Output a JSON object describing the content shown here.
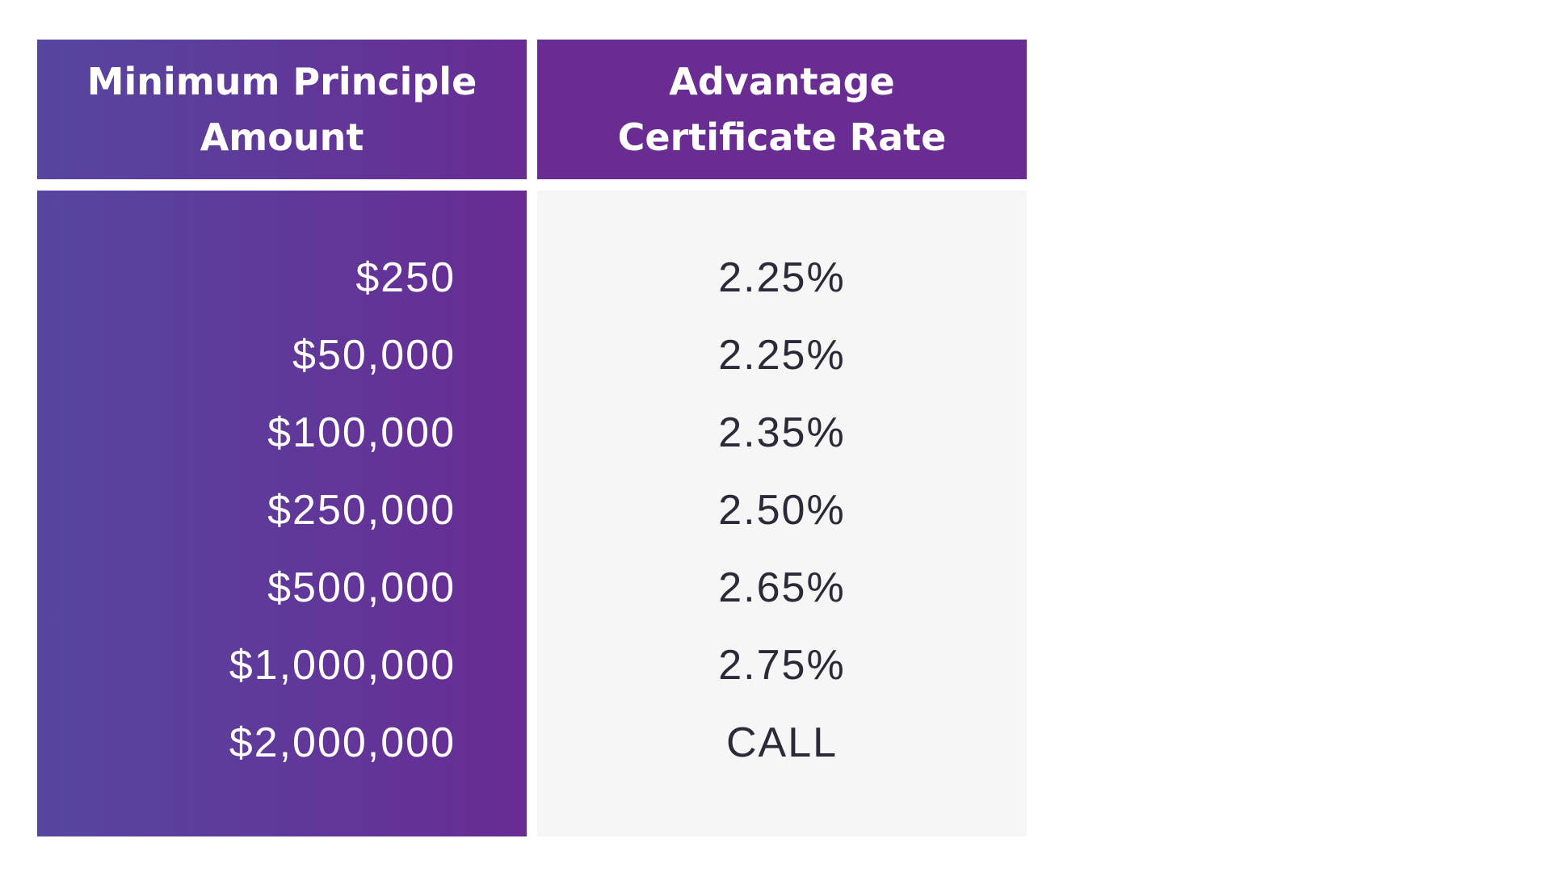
{
  "table": {
    "headers": {
      "amount": "Minimum Principle Amount",
      "rate": "Advantage Certificate Rate"
    },
    "amounts": [
      "$250",
      "$50,000",
      "$100,000",
      "$250,000",
      "$500,000",
      "$1,000,000",
      "$2,000,000"
    ],
    "rates": [
      "2.25%",
      "2.25%",
      "2.35%",
      "2.50%",
      "2.65%",
      "2.75%",
      "CALL"
    ]
  },
  "colors": {
    "gradient_start": "#5646a0",
    "gradient_end": "#682c93",
    "header_purple": "#692c93",
    "rate_column_bg": "#f6f6f6",
    "rate_text": "#2a2a38"
  }
}
